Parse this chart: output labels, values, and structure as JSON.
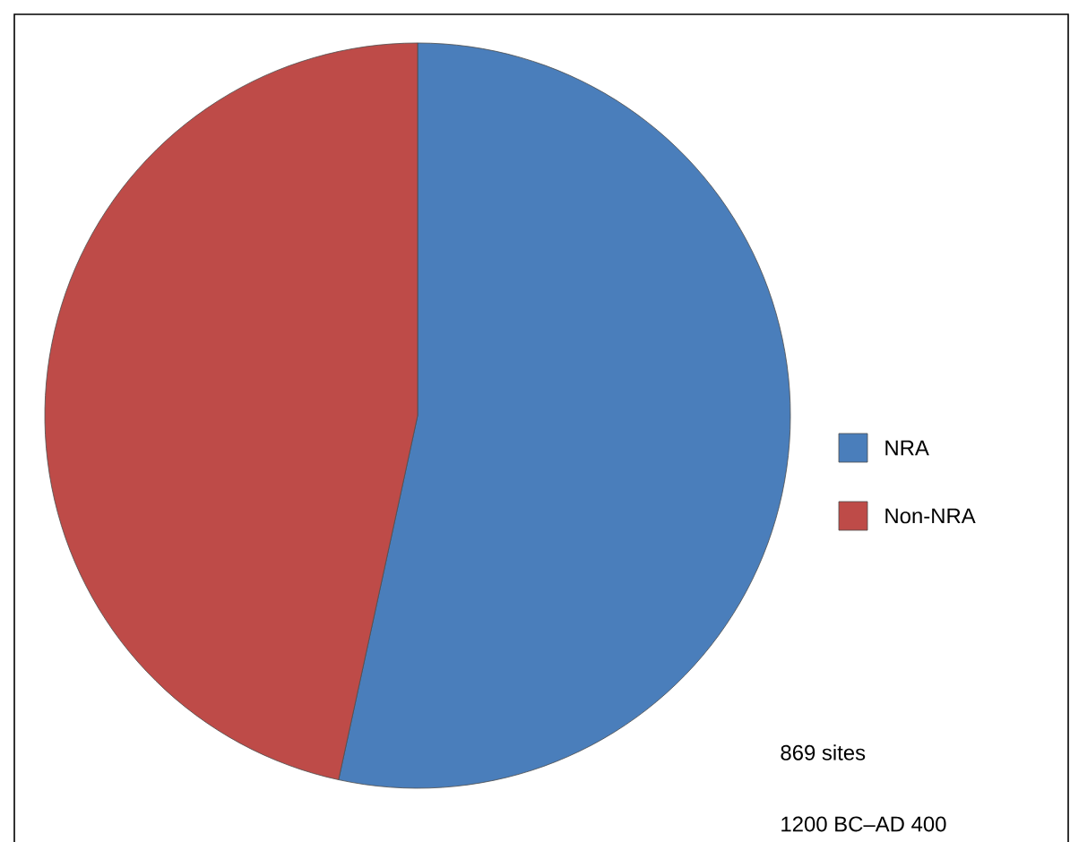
{
  "chart_data": {
    "type": "pie",
    "categories": [
      "NRA",
      "Non-NRA"
    ],
    "values": [
      53.4,
      46.6
    ],
    "colors": [
      "#4a7ebb",
      "#be4b48"
    ],
    "legend": "right",
    "annotations": [
      "869 sites",
      "1200 BC–AD 400"
    ]
  }
}
